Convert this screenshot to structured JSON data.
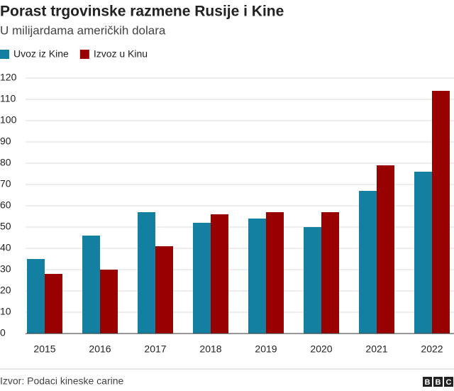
{
  "chart_data": {
    "type": "bar",
    "title": "Porast trgovinske razmene Rusije i Kine",
    "subtitle": "U milijardama američkih dolara",
    "categories": [
      "2015",
      "2016",
      "2017",
      "2018",
      "2019",
      "2020",
      "2021",
      "2022"
    ],
    "series": [
      {
        "name": "Uvoz iz Kine",
        "color": "#1380a1",
        "values": [
          35,
          46,
          57,
          52,
          54,
          50,
          67,
          76
        ]
      },
      {
        "name": "Izvoz u Kinu",
        "color": "#990000",
        "values": [
          28,
          30,
          41,
          56,
          57,
          57,
          79,
          114
        ]
      }
    ],
    "ylim": [
      0,
      120
    ],
    "yticks": [
      0,
      10,
      20,
      30,
      40,
      50,
      60,
      70,
      80,
      90,
      100,
      110,
      120
    ],
    "grid": true,
    "source": "Izvor: Podaci kineske carine",
    "logo": [
      "B",
      "B",
      "C"
    ]
  }
}
